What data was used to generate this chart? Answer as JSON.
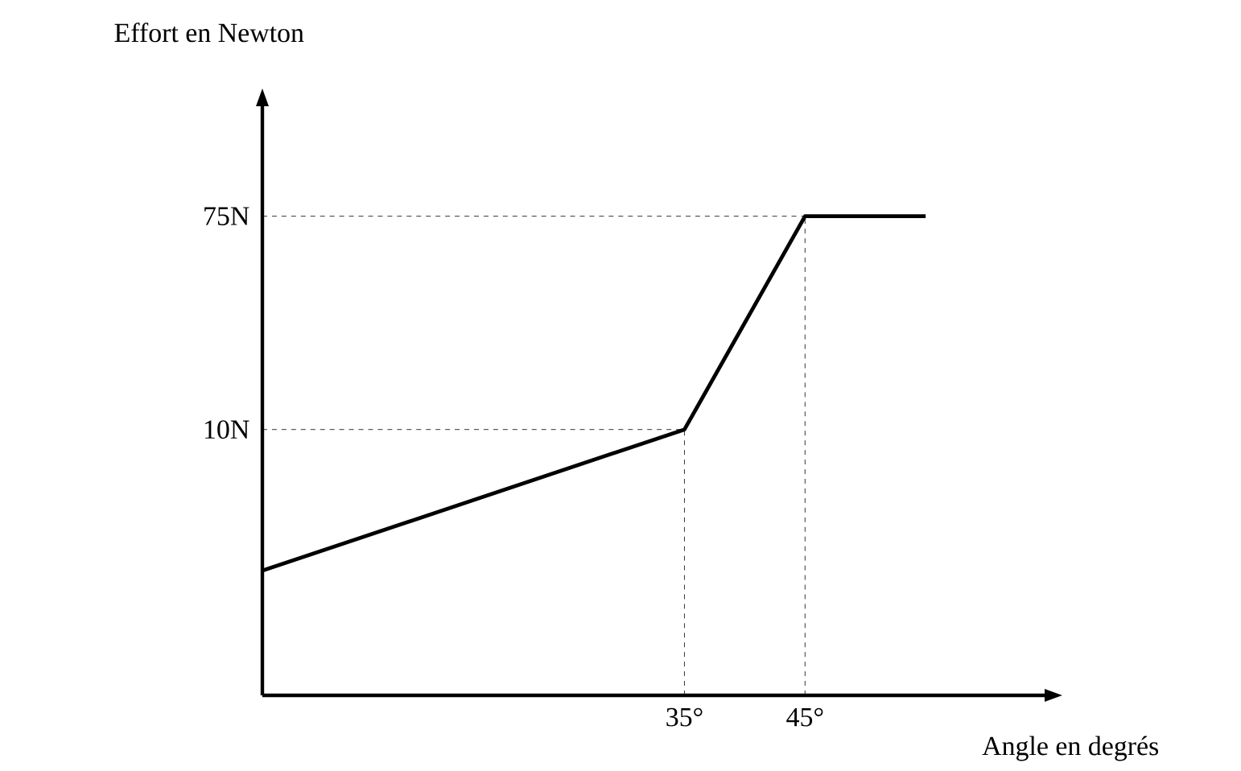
{
  "chart_data": {
    "type": "line",
    "xlabel": "Angle en degrés",
    "ylabel": "Effort en Newton",
    "x": [
      0,
      35,
      45,
      55
    ],
    "series": [
      {
        "color": "#000000",
        "values": [
          -33,
          10,
          75,
          75
        ]
      }
    ],
    "xlim": [
      0,
      65
    ],
    "ylim": [
      -71,
      109
    ],
    "xticks": [
      {
        "value": 35,
        "label": "35°"
      },
      {
        "value": 45,
        "label": "45°"
      }
    ],
    "yticks": [
      {
        "value": 10,
        "label": "10N"
      },
      {
        "value": 75,
        "label": "75N"
      }
    ],
    "ref_lines": [
      {
        "axis": "y",
        "value": 10,
        "line_style": "dashed"
      },
      {
        "axis": "y",
        "value": 75,
        "line_style": "dashed"
      },
      {
        "axis": "x",
        "value": 35,
        "line_style": "dashed"
      },
      {
        "axis": "x",
        "value": 45,
        "line_style": "dashed"
      }
    ],
    "grid": false,
    "marker": "none",
    "line_style": "solid"
  }
}
